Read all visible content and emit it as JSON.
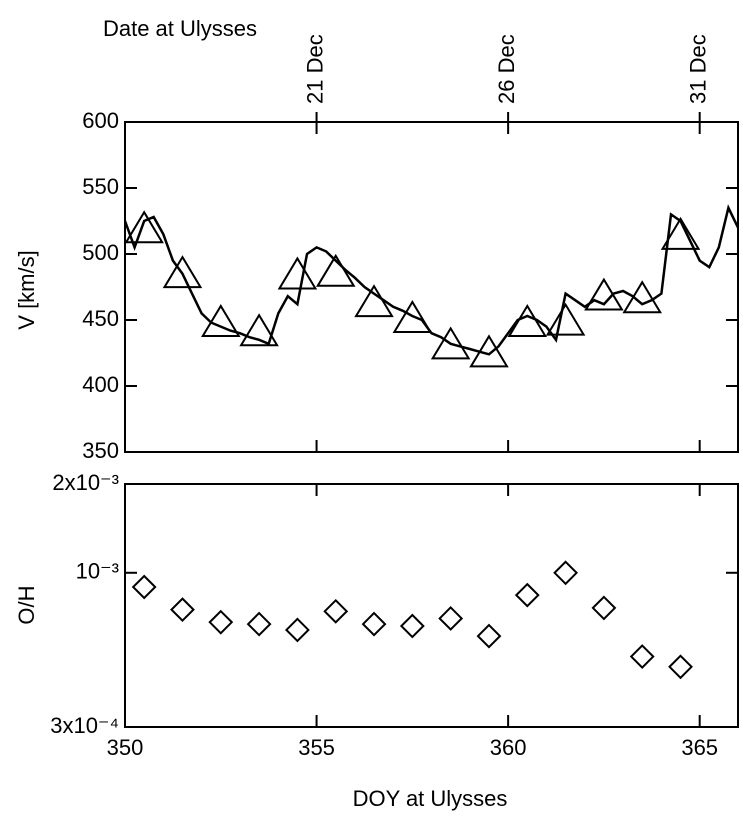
{
  "chart_data": [
    {
      "type": "line",
      "ylabel": "V [km/s]",
      "x2label": "Date at Ulysses",
      "xlim": [
        350,
        366
      ],
      "xticks": [
        350,
        355,
        360,
        365
      ],
      "x2ticks": [
        {
          "value": 355,
          "label": "21 Dec"
        },
        {
          "value": 360,
          "label": "26 Dec"
        },
        {
          "value": 365,
          "label": "31 Dec"
        }
      ],
      "ylim": [
        350,
        600
      ],
      "yticks": [
        350,
        400,
        450,
        500,
        550,
        600
      ],
      "series": [
        {
          "color": "#000000",
          "marker": "none",
          "x": [
            350,
            350.25,
            350.5,
            350.75,
            351,
            351.25,
            351.5,
            351.75,
            352,
            352.25,
            352.5,
            352.75,
            353,
            353.25,
            353.5,
            353.75,
            354,
            354.25,
            354.5,
            354.75,
            355,
            355.25,
            355.5,
            355.75,
            356,
            356.25,
            356.5,
            356.75,
            357,
            357.25,
            357.5,
            357.75,
            358,
            358.25,
            358.5,
            358.75,
            359,
            359.25,
            359.5,
            359.75,
            360,
            360.25,
            360.5,
            360.75,
            361,
            361.25,
            361.5,
            361.75,
            362,
            362.25,
            362.5,
            362.75,
            363,
            363.25,
            363.5,
            363.75,
            364,
            364.25,
            364.5,
            364.75,
            365,
            365.25,
            365.5,
            365.75,
            366
          ],
          "values": [
            525,
            505,
            525,
            528,
            515,
            495,
            485,
            470,
            455,
            448,
            445,
            442,
            440,
            437,
            435,
            432,
            455,
            468,
            462,
            500,
            505,
            502,
            495,
            488,
            482,
            475,
            470,
            465,
            460,
            457,
            453,
            450,
            440,
            437,
            432,
            430,
            428,
            426,
            424,
            430,
            440,
            450,
            453,
            450,
            445,
            435,
            470,
            465,
            460,
            465,
            462,
            470,
            472,
            468,
            462,
            465,
            470,
            530,
            525,
            510,
            495,
            490,
            505,
            535,
            520
          ]
        },
        {
          "color": "#000000",
          "marker": "triangle",
          "x": [
            350.5,
            351.5,
            352.5,
            353.5,
            354.5,
            355.5,
            356.5,
            357.5,
            358.5,
            359.5,
            360.5,
            361.5,
            362.5,
            363.5,
            364.5
          ],
          "values": [
            518,
            484,
            447,
            440,
            483,
            485,
            462,
            450,
            430,
            424,
            447,
            448,
            467,
            465,
            513
          ]
        }
      ]
    },
    {
      "type": "scatter",
      "ylabel": "O/H",
      "xlabel": "DOY at Ulysses",
      "log_y": true,
      "xlim": [
        350,
        366
      ],
      "xticks": [
        350,
        355,
        360,
        365
      ],
      "ylim": [
        0.0003,
        0.002
      ],
      "yticks": [
        {
          "value": 0.002,
          "label": "2x10⁻³"
        },
        {
          "value": 0.001,
          "label": "10⁻³"
        },
        {
          "value": 0.0003,
          "label": "3x10⁻⁴"
        }
      ],
      "series": [
        {
          "color": "#000000",
          "marker": "diamond",
          "x": [
            350.5,
            351.5,
            352.5,
            353.5,
            354.5,
            355.5,
            356.5,
            357.5,
            358.5,
            359.5,
            360.5,
            361.5,
            362.5,
            363.5,
            364.5
          ],
          "values": [
            0.000895,
            0.00075,
            0.00068,
            0.00067,
            0.00064,
            0.00074,
            0.00067,
            0.00066,
            0.0007,
            0.00061,
            0.00084,
            0.001,
            0.00076,
            0.00052,
            0.00048
          ]
        }
      ]
    }
  ]
}
